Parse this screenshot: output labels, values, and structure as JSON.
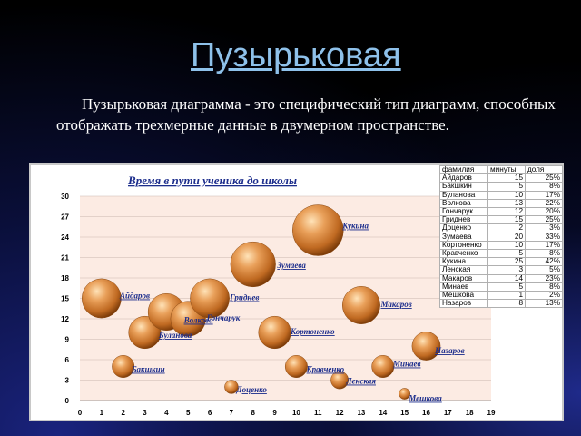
{
  "slide": {
    "title": "Пузырьковая",
    "text": "Пузырьковая диаграмма - это специфический тип диаграмм, способных отображать трехмерные данные в двумерном пространстве."
  },
  "colors": {
    "bubble": "#d9883a",
    "bubble_highlight": "#ffe3b8",
    "bubble_shadow": "#7a3a08",
    "plot_bg": "#fcebe3",
    "label": "#1c2d8c"
  },
  "chart_data": {
    "type": "bubble",
    "title": "Время в пути ученика до школы",
    "xlabel": "",
    "ylabel": "",
    "xlim": [
      0,
      19
    ],
    "ylim": [
      0,
      30
    ],
    "xticks": [
      0,
      1,
      2,
      3,
      4,
      5,
      6,
      7,
      8,
      9,
      10,
      11,
      12,
      13,
      14,
      15,
      16,
      17,
      18,
      19
    ],
    "yticks": [
      0,
      3,
      6,
      9,
      12,
      15,
      18,
      21,
      24,
      27,
      30
    ],
    "grid": "horizontal",
    "legend": "none",
    "points": [
      {
        "label": "Айдаров",
        "x": 1,
        "y": 15,
        "size": 25
      },
      {
        "label": "Бакшкин",
        "x": 2,
        "y": 5,
        "size": 8
      },
      {
        "label": "Буланова",
        "x": 3,
        "y": 10,
        "size": 17
      },
      {
        "label": "Волкова",
        "x": 4,
        "y": 13,
        "size": 22
      },
      {
        "label": "Гончарук",
        "x": 5,
        "y": 12,
        "size": 20
      },
      {
        "label": "Гриднев",
        "x": 6,
        "y": 15,
        "size": 25
      },
      {
        "label": "Доценко",
        "x": 7,
        "y": 2,
        "size": 3
      },
      {
        "label": "Зумаева",
        "x": 8,
        "y": 20,
        "size": 33
      },
      {
        "label": "Кортоненко",
        "x": 9,
        "y": 10,
        "size": 17
      },
      {
        "label": "Кравченко",
        "x": 10,
        "y": 5,
        "size": 8
      },
      {
        "label": "Кукина",
        "x": 11,
        "y": 25,
        "size": 42
      },
      {
        "label": "Ленская",
        "x": 12,
        "y": 3,
        "size": 5
      },
      {
        "label": "Макаров",
        "x": 13,
        "y": 14,
        "size": 23
      },
      {
        "label": "Минаев",
        "x": 14,
        "y": 5,
        "size": 8
      },
      {
        "label": "Мешкова",
        "x": 15,
        "y": 1,
        "size": 2
      },
      {
        "label": "Назаров",
        "x": 16,
        "y": 8,
        "size": 13
      }
    ]
  },
  "table": {
    "headers": [
      "фамилия",
      "минуты",
      "доля"
    ],
    "rows": [
      [
        "Айдаров",
        "15",
        "25%"
      ],
      [
        "Бакшкин",
        "5",
        "8%"
      ],
      [
        "Буланова",
        "10",
        "17%"
      ],
      [
        "Волкова",
        "13",
        "22%"
      ],
      [
        "Гончарук",
        "12",
        "20%"
      ],
      [
        "Гриднев",
        "15",
        "25%"
      ],
      [
        "Доценко",
        "2",
        "3%"
      ],
      [
        "Зумаева",
        "20",
        "33%"
      ],
      [
        "Кортоненко",
        "10",
        "17%"
      ],
      [
        "Кравченко",
        "5",
        "8%"
      ],
      [
        "Кукина",
        "25",
        "42%"
      ],
      [
        "Ленская",
        "3",
        "5%"
      ],
      [
        "Макаров",
        "14",
        "23%"
      ],
      [
        "Минаев",
        "5",
        "8%"
      ],
      [
        "Мешкова",
        "1",
        "2%"
      ],
      [
        "Назаров",
        "8",
        "13%"
      ]
    ]
  }
}
